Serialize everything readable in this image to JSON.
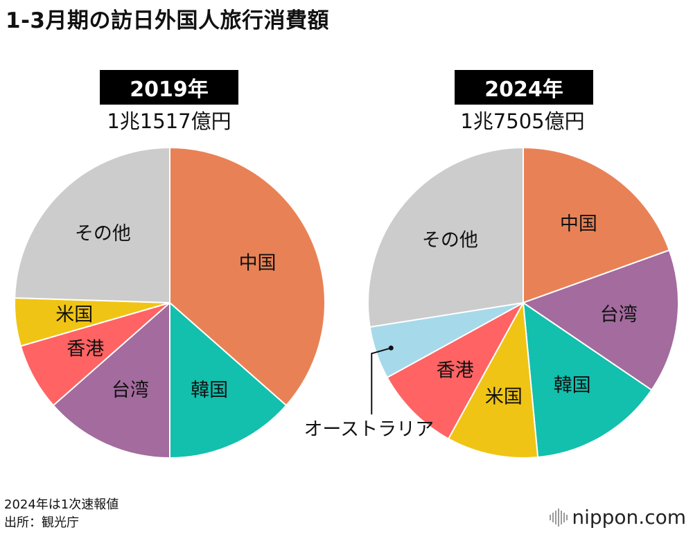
{
  "title": "1-3月期の訪日外国人旅行消費額",
  "footnotes": [
    "2024年は1次速報値",
    "出所：観光庁"
  ],
  "brand": "nippon.com",
  "colors": {
    "中国": "#e88256",
    "韓国": "#13bfad",
    "台湾": "#a36b9e",
    "香港": "#ff6363",
    "米国": "#f0c414",
    "オーストラリア": "#a6d9ea",
    "その他": "#cccccc"
  },
  "chart_data": [
    {
      "type": "pie",
      "title": "2019年",
      "subtitle": "1兆1517億円",
      "unit": "percent share (estimated)",
      "start": "12 o'clock, clockwise",
      "slices": [
        {
          "label": "中国",
          "value": 36.5
        },
        {
          "label": "韓国",
          "value": 13.5
        },
        {
          "label": "台湾",
          "value": 13.5
        },
        {
          "label": "香港",
          "value": 7.0
        },
        {
          "label": "米国",
          "value": 5.0
        },
        {
          "label": "その他",
          "value": 24.5
        }
      ]
    },
    {
      "type": "pie",
      "title": "2024年",
      "subtitle": "1兆7505億円",
      "unit": "percent share (estimated)",
      "start": "12 o'clock, clockwise",
      "slices": [
        {
          "label": "中国",
          "value": 19.5
        },
        {
          "label": "台湾",
          "value": 15.0
        },
        {
          "label": "韓国",
          "value": 14.0
        },
        {
          "label": "米国",
          "value": 9.5
        },
        {
          "label": "香港",
          "value": 9.0
        },
        {
          "label": "オーストラリア",
          "value": 5.5
        },
        {
          "label": "その他",
          "value": 27.5
        }
      ]
    }
  ]
}
